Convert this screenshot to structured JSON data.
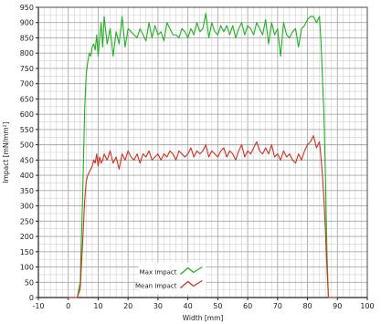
{
  "chart_data": {
    "type": "line",
    "title": "",
    "xlabel": "Width [mm]",
    "ylabel": "Impact [mN/mm²]",
    "xlim": [
      -10,
      100
    ],
    "ylim": [
      0,
      950
    ],
    "x_ticks": [
      -10,
      0,
      10,
      20,
      30,
      40,
      50,
      60,
      70,
      80,
      90,
      100
    ],
    "y_ticks": [
      0,
      50,
      100,
      150,
      200,
      250,
      300,
      350,
      400,
      450,
      500,
      550,
      600,
      650,
      700,
      750,
      800,
      850,
      900,
      950
    ],
    "grid": true,
    "legend_position": "bottom-center",
    "series": [
      {
        "name": "Max Impact",
        "color": "#22b022",
        "x": [
          0,
          3,
          4,
          4.8,
          5.5,
          6,
          6.5,
          7,
          7.5,
          8,
          8.5,
          9,
          9.5,
          10,
          10.5,
          11,
          11.5,
          12,
          13,
          14,
          15,
          16,
          17,
          18,
          19,
          20,
          21,
          22,
          23,
          24,
          25,
          26,
          27,
          28,
          29,
          30,
          31,
          32,
          33,
          34,
          35,
          36,
          37,
          38,
          39,
          40,
          41,
          42,
          43,
          44,
          45,
          46,
          47,
          48,
          49,
          50,
          51,
          52,
          53,
          54,
          55,
          56,
          57,
          58,
          59,
          60,
          61,
          62,
          63,
          64,
          65,
          66,
          67,
          68,
          69,
          70,
          71,
          72,
          73,
          74,
          75,
          76,
          77,
          78,
          79,
          80,
          81,
          82,
          83,
          84,
          84.5,
          85,
          85.5,
          86,
          86.5,
          87,
          90
        ],
        "values": [
          0,
          0,
          50,
          330,
          620,
          730,
          770,
          800,
          790,
          820,
          830,
          810,
          860,
          790,
          850,
          900,
          820,
          920,
          830,
          880,
          790,
          870,
          830,
          920,
          820,
          880,
          870,
          860,
          850,
          880,
          860,
          840,
          900,
          850,
          890,
          860,
          870,
          840,
          900,
          880,
          860,
          860,
          850,
          880,
          870,
          850,
          880,
          860,
          900,
          870,
          880,
          930,
          850,
          900,
          870,
          860,
          890,
          870,
          890,
          860,
          890,
          850,
          880,
          900,
          860,
          890,
          880,
          860,
          900,
          880,
          860,
          910,
          830,
          900,
          860,
          880,
          790,
          900,
          860,
          850,
          870,
          880,
          820,
          880,
          890,
          910,
          920,
          920,
          900,
          920,
          840,
          720,
          600,
          400,
          150,
          0,
          0
        ]
      },
      {
        "name": "Mean Impact",
        "color": "#cc3322",
        "x": [
          0,
          3,
          4,
          4.8,
          5.5,
          6,
          6.5,
          7,
          7.5,
          8,
          8.5,
          9,
          9.5,
          10,
          10.5,
          11,
          11.5,
          12,
          13,
          14,
          15,
          16,
          17,
          18,
          19,
          20,
          21,
          22,
          23,
          24,
          25,
          26,
          27,
          28,
          29,
          30,
          31,
          32,
          33,
          34,
          35,
          36,
          37,
          38,
          39,
          40,
          41,
          42,
          43,
          44,
          45,
          46,
          47,
          48,
          49,
          50,
          51,
          52,
          53,
          54,
          55,
          56,
          57,
          58,
          59,
          60,
          61,
          62,
          63,
          64,
          65,
          66,
          67,
          68,
          69,
          70,
          71,
          72,
          73,
          74,
          75,
          76,
          77,
          78,
          79,
          80,
          81,
          82,
          83,
          84,
          84.5,
          85,
          85.5,
          86,
          86.5,
          87,
          90
        ],
        "values": [
          0,
          0,
          30,
          180,
          320,
          380,
          400,
          410,
          420,
          430,
          450,
          440,
          470,
          430,
          460,
          440,
          450,
          470,
          450,
          480,
          440,
          460,
          420,
          470,
          450,
          480,
          460,
          450,
          470,
          440,
          470,
          460,
          480,
          450,
          460,
          470,
          450,
          470,
          460,
          480,
          470,
          450,
          480,
          470,
          460,
          470,
          490,
          460,
          480,
          470,
          480,
          500,
          460,
          480,
          470,
          460,
          480,
          490,
          460,
          480,
          470,
          450,
          480,
          500,
          460,
          480,
          470,
          490,
          510,
          480,
          470,
          490,
          470,
          500,
          460,
          470,
          450,
          480,
          460,
          470,
          450,
          440,
          470,
          450,
          480,
          500,
          510,
          530,
          490,
          510,
          460,
          400,
          320,
          220,
          100,
          0,
          0
        ]
      }
    ]
  }
}
